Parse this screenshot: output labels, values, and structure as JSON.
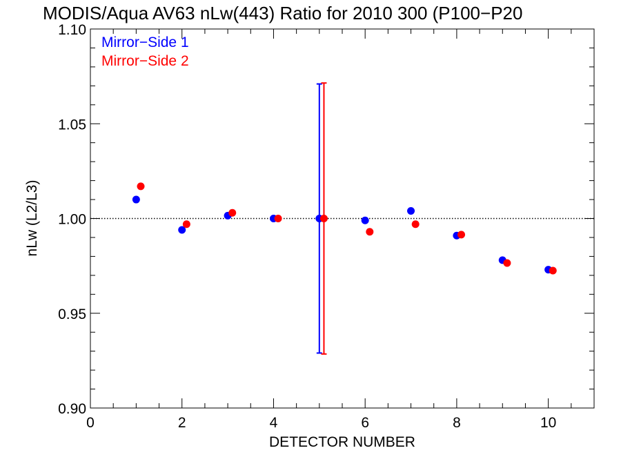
{
  "chart_data": {
    "type": "scatter",
    "title": "MODIS/Aqua AV63 nLw(443) Ratio for 2010 300 (P100−P20",
    "xlabel": "DETECTOR NUMBER",
    "ylabel": "nLw (L2/L3)",
    "xlim": [
      0,
      11
    ],
    "ylim": [
      0.9,
      1.1
    ],
    "x_ticks": [
      0,
      2,
      4,
      6,
      8,
      10
    ],
    "x_tick_labels": [
      "0",
      "2",
      "4",
      "6",
      "8",
      "10"
    ],
    "y_ticks": [
      0.9,
      0.95,
      1.0,
      1.05,
      1.1
    ],
    "y_tick_labels": [
      "0.90",
      "0.95",
      "1.00",
      "1.05",
      "1.10"
    ],
    "reference_line": {
      "y": 1.0,
      "style": "dotted"
    },
    "legend_position": "top-left",
    "series": [
      {
        "name": "Mirror−Side 1",
        "color": "#0000ff",
        "x": [
          1,
          2,
          3,
          4,
          5,
          6,
          7,
          8,
          9,
          10
        ],
        "y": [
          1.01,
          0.994,
          1.0015,
          1.0,
          1.0,
          0.999,
          1.004,
          0.991,
          0.978,
          0.973
        ],
        "error_bar": {
          "x": 5,
          "low": 0.929,
          "high": 1.071
        }
      },
      {
        "name": "Mirror−Side 2",
        "color": "#ff0000",
        "x": [
          1.1,
          2.1,
          3.1,
          4.1,
          5.1,
          6.1,
          7.1,
          8.1,
          9.1,
          10.1
        ],
        "y": [
          1.017,
          0.997,
          1.003,
          1.0,
          1.0,
          0.993,
          0.997,
          0.9915,
          0.9765,
          0.9725
        ],
        "error_bar": {
          "x": 5.1,
          "low": 0.9285,
          "high": 1.0715
        }
      }
    ]
  }
}
